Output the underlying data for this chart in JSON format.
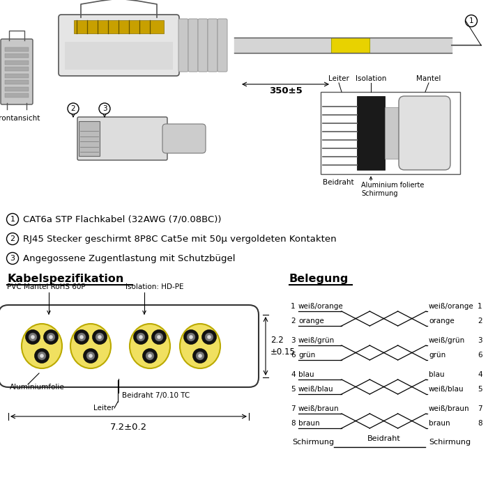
{
  "bg_color": "#ffffff",
  "text_color": "#000000",
  "item1": "CAT6a STP Flachkabel (32AWG (7/0.08BC))",
  "item2": "RJ45 Stecker geschirmt 8P8C Cat5e mit 50μ vergoldeten Kontakten",
  "item3": "Angegossene Zugentlastung mit Schutzbügel",
  "kabel_title": "Kabelspezifikation",
  "belegung_title": "Belegung",
  "dim_350": "350±5",
  "dim_72": "7.2±0.2",
  "dim_22": "2.2\n±0.15",
  "pvc_label": "PVC Mantel RoHS 60P",
  "isolation_label": "Isolation: HD-PE",
  "alu_label": "Aluminiumfolie",
  "leiter_label": "Leiter",
  "beidraht_label": "Beidraht 7/0.10 TC",
  "frontansicht": "Frontansicht",
  "schirmung_label": "Schirmung",
  "beidraht_belegung": "Beidraht",
  "cross_leiter": "Leiter",
  "cross_isolation": "Isolation",
  "cross_mantel": "Mantel",
  "cross_beidraht": "Beidraht",
  "cross_alu": "Aluminium folierte\nSchirmung",
  "labels_l": [
    "1",
    "weiß/orange",
    "2",
    "orange",
    "3",
    "weiß/grün",
    "6",
    "grün",
    "4",
    "blau",
    "5",
    "weiß/blau",
    "7",
    "weiß/braun",
    "8",
    "braun"
  ],
  "labels_r": [
    "weiß/orange",
    "1",
    "orange",
    "2",
    "weiß/grün",
    "3",
    "grün",
    "6",
    "blau",
    "4",
    "weiß/blau",
    "5",
    "weiß/braun",
    "7",
    "braun",
    "8"
  ],
  "gray_light": "#e0e0e0",
  "gray_mid": "#cccccc",
  "gray_dark": "#888888",
  "yellow_label": "#e8d200",
  "black_shield": "#1a1a1a",
  "wire_dark": "#111111",
  "wire_mid": "#777777",
  "foil_yellow": "#f0e060",
  "foil_edge": "#bbaa00"
}
